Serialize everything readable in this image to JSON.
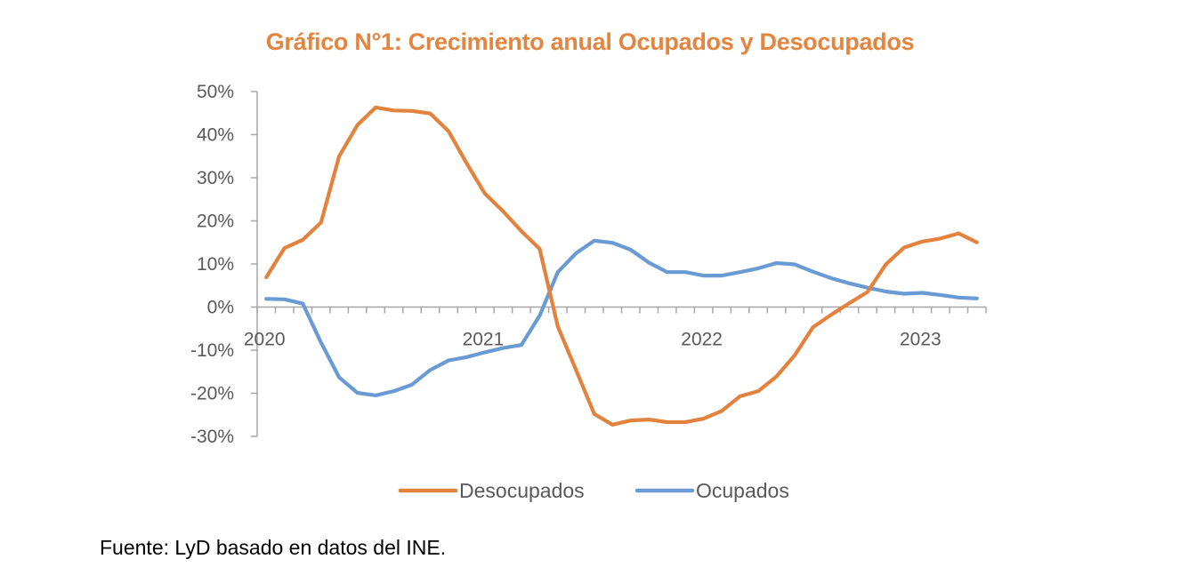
{
  "chart_data": {
    "type": "line",
    "title": "Gráfico N°1: Crecimiento anual Ocupados y Desocupados",
    "xlabel": "",
    "ylabel": "",
    "x_period": "monthly, Jan 2020 – Apr 2023",
    "x_tick_labels": [
      {
        "index": 0,
        "label": "2020"
      },
      {
        "index": 12,
        "label": "2021"
      },
      {
        "index": 24,
        "label": "2022"
      },
      {
        "index": 36,
        "label": "2023"
      }
    ],
    "ylim": [
      -30,
      50
    ],
    "y_step": 10,
    "y_tick_labels": [
      "-30%",
      "-20%",
      "-10%",
      "0%",
      "10%",
      "20%",
      "30%",
      "40%",
      "50%"
    ],
    "y_unit": "%",
    "grid": false,
    "legend_position": "bottom",
    "series": [
      {
        "name": "Desocupados",
        "color": "#E3823D",
        "values": [
          6.9,
          13.7,
          15.6,
          19.6,
          35.0,
          42.2,
          46.3,
          45.6,
          45.5,
          44.9,
          40.8,
          33.3,
          26.3,
          22.2,
          17.6,
          13.5,
          -4.5,
          -14.6,
          -24.8,
          -27.3,
          -26.3,
          -26.1,
          -26.7,
          -26.7,
          -25.9,
          -24.1,
          -20.7,
          -19.5,
          -16.1,
          -11.2,
          -4.7,
          -1.8,
          0.9,
          3.5,
          9.9,
          13.8,
          15.2,
          15.9,
          17.1,
          15.0
        ]
      },
      {
        "name": "Ocupados",
        "color": "#6A9AD4",
        "values": [
          1.9,
          1.8,
          0.8,
          -8.2,
          -16.3,
          -19.9,
          -20.5,
          -19.5,
          -18.0,
          -14.6,
          -12.4,
          -11.6,
          -10.5,
          -9.5,
          -8.8,
          -2.0,
          8.1,
          12.5,
          15.4,
          14.9,
          13.3,
          10.3,
          8.1,
          8.1,
          7.3,
          7.3,
          8.1,
          9.0,
          10.2,
          9.9,
          8.2,
          6.7,
          5.5,
          4.5,
          3.6,
          3.1,
          3.3,
          2.8,
          2.2,
          2.0
        ]
      }
    ]
  },
  "source_note": "Fuente: LyD basado en datos del INE.",
  "colors": {
    "title": "#E4853F",
    "axis": "#A6A6A6",
    "tick_text": "#595959"
  }
}
